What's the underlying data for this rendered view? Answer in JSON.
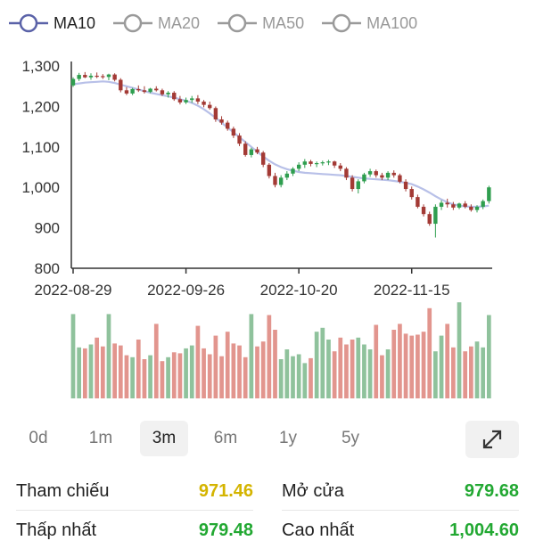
{
  "legend": [
    {
      "label": "MA10",
      "active": true,
      "color": "#5a62a8"
    },
    {
      "label": "MA20",
      "active": false,
      "color": "#9a9a9a"
    },
    {
      "label": "MA50",
      "active": false,
      "color": "#9a9a9a"
    },
    {
      "label": "MA100",
      "active": false,
      "color": "#9a9a9a"
    }
  ],
  "chart_data": {
    "type": "candlestick",
    "y_ticks": [
      "1,300",
      "1,200",
      "1,100",
      "1,000",
      "900",
      "800"
    ],
    "y_tick_values": [
      1300,
      1200,
      1100,
      1000,
      900,
      800
    ],
    "ylim": [
      800,
      1320
    ],
    "x_ticks": [
      {
        "label": "2022-08-29",
        "index": 0
      },
      {
        "label": "2022-09-26",
        "index": 19
      },
      {
        "label": "2022-10-20",
        "index": 38
      },
      {
        "label": "2022-11-15",
        "index": 57
      }
    ],
    "up_color": "#2f9e4f",
    "down_color": "#a33a35",
    "ma_color": "#b8c0e8",
    "ohlc": [
      [
        1252,
        1272,
        1248,
        1268
      ],
      [
        1268,
        1283,
        1263,
        1278
      ],
      [
        1278,
        1285,
        1270,
        1272
      ],
      [
        1272,
        1282,
        1266,
        1276
      ],
      [
        1276,
        1284,
        1270,
        1275
      ],
      [
        1275,
        1280,
        1268,
        1273
      ],
      [
        1273,
        1281,
        1265,
        1279
      ],
      [
        1279,
        1282,
        1262,
        1266
      ],
      [
        1266,
        1270,
        1235,
        1240
      ],
      [
        1240,
        1248,
        1228,
        1232
      ],
      [
        1232,
        1246,
        1228,
        1243
      ],
      [
        1243,
        1252,
        1236,
        1240
      ],
      [
        1240,
        1250,
        1232,
        1236
      ],
      [
        1236,
        1246,
        1233,
        1244
      ],
      [
        1244,
        1250,
        1237,
        1240
      ],
      [
        1240,
        1244,
        1226,
        1230
      ],
      [
        1230,
        1238,
        1222,
        1234
      ],
      [
        1234,
        1238,
        1214,
        1218
      ],
      [
        1218,
        1226,
        1205,
        1210
      ],
      [
        1210,
        1222,
        1206,
        1216
      ],
      [
        1216,
        1226,
        1209,
        1220
      ],
      [
        1220,
        1228,
        1206,
        1212
      ],
      [
        1212,
        1216,
        1198,
        1204
      ],
      [
        1204,
        1212,
        1192,
        1196
      ],
      [
        1196,
        1200,
        1162,
        1168
      ],
      [
        1168,
        1176,
        1155,
        1160
      ],
      [
        1160,
        1165,
        1140,
        1145
      ],
      [
        1145,
        1150,
        1122,
        1128
      ],
      [
        1128,
        1134,
        1102,
        1108
      ],
      [
        1108,
        1114,
        1076,
        1080
      ],
      [
        1080,
        1098,
        1074,
        1094
      ],
      [
        1094,
        1100,
        1082,
        1086
      ],
      [
        1086,
        1090,
        1050,
        1056
      ],
      [
        1056,
        1060,
        1022,
        1028
      ],
      [
        1028,
        1036,
        1000,
        1006
      ],
      [
        1006,
        1030,
        1000,
        1024
      ],
      [
        1024,
        1040,
        1018,
        1034
      ],
      [
        1034,
        1050,
        1028,
        1046
      ],
      [
        1046,
        1062,
        1040,
        1056
      ],
      [
        1056,
        1070,
        1048,
        1064
      ],
      [
        1064,
        1068,
        1052,
        1058
      ],
      [
        1058,
        1064,
        1050,
        1060
      ],
      [
        1060,
        1066,
        1054,
        1062
      ],
      [
        1062,
        1068,
        1055,
        1064
      ],
      [
        1064,
        1066,
        1048,
        1054
      ],
      [
        1054,
        1060,
        1040,
        1046
      ],
      [
        1046,
        1050,
        1018,
        1024
      ],
      [
        1024,
        1030,
        990,
        996
      ],
      [
        996,
        1020,
        985,
        1015
      ],
      [
        1015,
        1036,
        1010,
        1032
      ],
      [
        1032,
        1046,
        1026,
        1040
      ],
      [
        1040,
        1044,
        1024,
        1030
      ],
      [
        1030,
        1036,
        1018,
        1024
      ],
      [
        1024,
        1040,
        1018,
        1036
      ],
      [
        1036,
        1042,
        1024,
        1030
      ],
      [
        1030,
        1034,
        1010,
        1014
      ],
      [
        1014,
        1020,
        990,
        996
      ],
      [
        996,
        1002,
        970,
        976
      ],
      [
        976,
        982,
        948,
        952
      ],
      [
        952,
        958,
        928,
        934
      ],
      [
        934,
        940,
        905,
        910
      ],
      [
        910,
        958,
        876,
        952
      ],
      [
        952,
        968,
        944,
        962
      ],
      [
        962,
        972,
        950,
        958
      ],
      [
        958,
        964,
        944,
        950
      ],
      [
        950,
        962,
        946,
        960
      ],
      [
        960,
        966,
        948,
        952
      ],
      [
        952,
        958,
        940,
        944
      ],
      [
        944,
        956,
        938,
        952
      ],
      [
        952,
        970,
        946,
        966
      ],
      [
        966,
        1004,
        960,
        1000
      ]
    ],
    "ma10": [
      1255,
      1257,
      1259,
      1260,
      1261,
      1262,
      1261,
      1258,
      1254,
      1250,
      1246,
      1242,
      1238,
      1234,
      1231,
      1228,
      1225,
      1222,
      1218,
      1214,
      1209,
      1202,
      1193,
      1183,
      1172,
      1160,
      1148,
      1136,
      1124,
      1112,
      1100,
      1088,
      1076,
      1066,
      1057,
      1050,
      1045,
      1041,
      1038,
      1036,
      1035,
      1034,
      1033,
      1032,
      1031,
      1030,
      1028,
      1026,
      1024,
      1022,
      1021,
      1020,
      1019,
      1018,
      1016,
      1014,
      1011,
      1008,
      1002,
      995,
      987,
      978,
      970,
      963,
      958,
      955,
      953,
      952,
      952,
      953,
      955
    ],
    "volume": [
      0.86,
      0.52,
      0.51,
      0.55,
      0.62,
      0.53,
      0.86,
      0.56,
      0.54,
      0.44,
      0.42,
      0.6,
      0.4,
      0.44,
      0.76,
      0.38,
      0.42,
      0.47,
      0.46,
      0.51,
      0.54,
      0.74,
      0.51,
      0.45,
      0.64,
      0.43,
      0.68,
      0.56,
      0.54,
      0.42,
      0.86,
      0.53,
      0.58,
      0.85,
      0.7,
      0.4,
      0.5,
      0.43,
      0.45,
      0.36,
      0.41,
      0.68,
      0.72,
      0.6,
      0.48,
      0.62,
      0.55,
      0.6,
      0.62,
      0.55,
      0.5,
      0.75,
      0.44,
      0.5,
      0.7,
      0.76,
      0.66,
      0.64,
      0.65,
      0.68,
      0.92,
      0.48,
      0.64,
      0.76,
      0.52,
      0.98,
      0.48,
      0.53,
      0.58,
      0.52,
      0.85
    ]
  },
  "timerange": [
    {
      "label": "0d",
      "active": false
    },
    {
      "label": "1m",
      "active": false
    },
    {
      "label": "3m",
      "active": true
    },
    {
      "label": "6m",
      "active": false
    },
    {
      "label": "1y",
      "active": false
    },
    {
      "label": "5y",
      "active": false
    }
  ],
  "expand_icon": "expand-icon",
  "stats": [
    {
      "label": "Tham chiếu",
      "value": "971.46",
      "color": "#d4b400"
    },
    {
      "label": "Mở cửa",
      "value": "979.68",
      "color": "#22a832"
    },
    {
      "label": "Thấp nhất",
      "value": "979.48",
      "color": "#22a832"
    },
    {
      "label": "Cao nhất",
      "value": "1,004.60",
      "color": "#22a832"
    }
  ]
}
